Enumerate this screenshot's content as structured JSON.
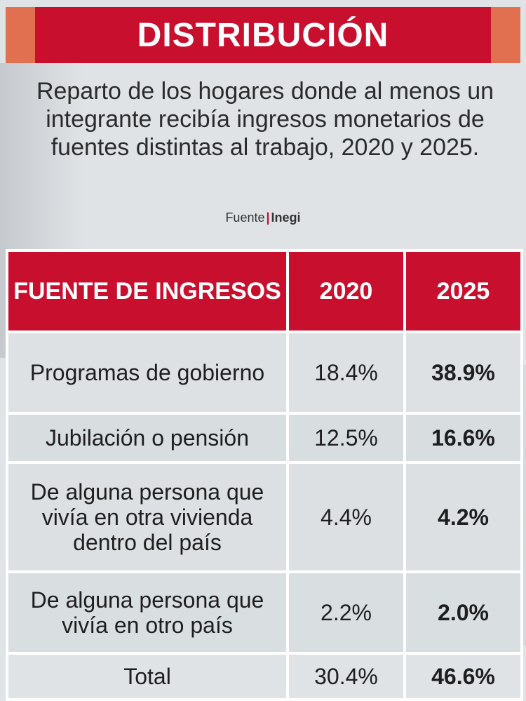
{
  "title": "DISTRIBUCIÓN",
  "subtitle": "Reparto de los hogares donde al menos un integrante recibía ingresos monetarios de fuentes distintas al trabajo, 2020 y 2025.",
  "source": {
    "label": "Fuente",
    "org": "Inegi"
  },
  "colors": {
    "header_red": "#c8102e",
    "accent_orange": "#e07050",
    "background": "#dfe3e6"
  },
  "chart_data": {
    "type": "table",
    "columns": [
      "FUENTE DE INGRESOS",
      "2020",
      "2025"
    ],
    "rows": [
      {
        "source": "Programas de gobierno",
        "v2020": "18.4%",
        "v2025": "38.9%"
      },
      {
        "source": "Jubilación o pensión",
        "v2020": "12.5%",
        "v2025": "16.6%"
      },
      {
        "source": "De alguna persona que vivía en otra vivienda dentro del país",
        "v2020": "4.4%",
        "v2025": "4.2%"
      },
      {
        "source": "De alguna persona que vivía en otro país",
        "v2020": "2.2%",
        "v2025": "2.0%"
      },
      {
        "source": "Total",
        "v2020": "30.4%",
        "v2025": "46.6%"
      }
    ]
  }
}
